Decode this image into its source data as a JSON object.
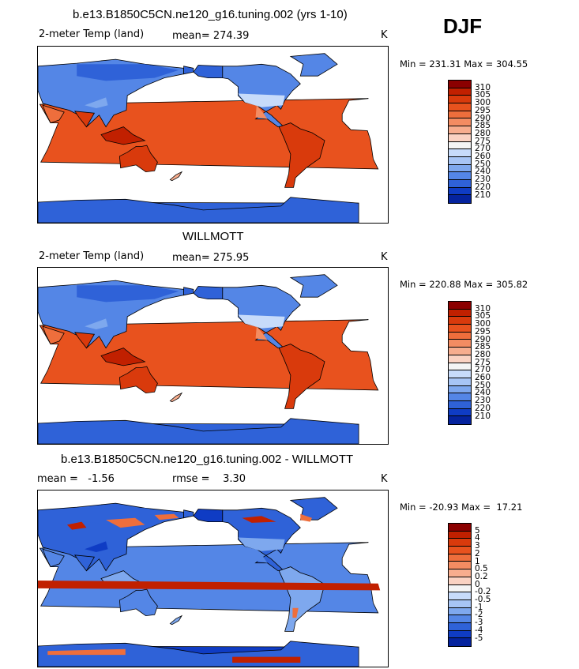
{
  "season": "DJF",
  "panels": [
    {
      "title": "b.e13.B1850C5CN.ne120_g16.tuning.002 (yrs 1-10)",
      "left_label": "2-meter Temp (land)",
      "center_label": "mean= 274.39",
      "units": "K",
      "stats": "Min = 231.31 Max = 304.55",
      "ticks": [
        "310",
        "305",
        "300",
        "295",
        "290",
        "285",
        "280",
        "275",
        "270",
        "260",
        "250",
        "240",
        "230",
        "220",
        "210"
      ],
      "colors": [
        "#8b0000",
        "#c12000",
        "#d93a0c",
        "#e8521e",
        "#ee6e3c",
        "#f38c62",
        "#f7ad8e",
        "#fad2c2",
        "#f4f4f4",
        "#c7dbfa",
        "#a7c5f5",
        "#7ea8ee",
        "#5486e6",
        "#2f62d8",
        "#0f3cc4",
        "#05239e"
      ],
      "theme": "abs"
    },
    {
      "title": "WILLMOTT",
      "left_label": "2-meter Temp (land)",
      "center_label": "mean= 275.95",
      "units": "K",
      "stats": "Min = 220.88 Max = 305.82",
      "ticks": [
        "310",
        "305",
        "300",
        "295",
        "290",
        "285",
        "280",
        "275",
        "270",
        "260",
        "250",
        "240",
        "230",
        "220",
        "210"
      ],
      "colors": [
        "#8b0000",
        "#c12000",
        "#d93a0c",
        "#e8521e",
        "#ee6e3c",
        "#f38c62",
        "#f7ad8e",
        "#fad2c2",
        "#f4f4f4",
        "#c7dbfa",
        "#a7c5f5",
        "#7ea8ee",
        "#5486e6",
        "#2f62d8",
        "#0f3cc4",
        "#05239e"
      ],
      "theme": "abs"
    },
    {
      "title": "b.e13.B1850C5CN.ne120_g16.tuning.002 - WILLMOTT",
      "left_label": "mean =   -1.56",
      "center_label": "rmse =    3.30",
      "units": "K",
      "stats": "Min = -20.93 Max =  17.21",
      "ticks": [
        "5",
        "4",
        "3",
        "2",
        "1",
        "0.5",
        "0.2",
        "0",
        "-0.2",
        "-0.5",
        "-1",
        "-2",
        "-3",
        "-4",
        "-5"
      ],
      "colors": [
        "#8b0000",
        "#c12000",
        "#d93a0c",
        "#e8521e",
        "#ee6e3c",
        "#f38c62",
        "#f7ad8e",
        "#fad2c2",
        "#f4f4f4",
        "#c7dbfa",
        "#a7c5f5",
        "#7ea8ee",
        "#5486e6",
        "#2f62d8",
        "#0f3cc4",
        "#05239e"
      ],
      "theme": "diff"
    }
  ]
}
